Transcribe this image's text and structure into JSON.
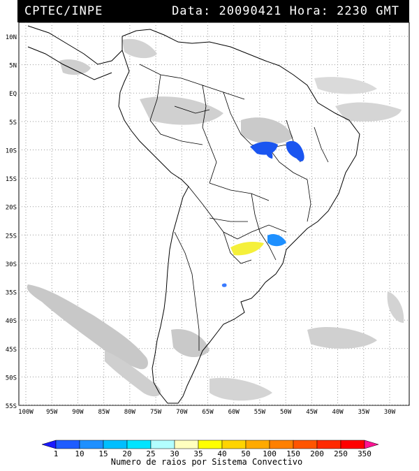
{
  "header": {
    "agency": "CPTEC/INPE",
    "data_label": "Data:",
    "date": "20090421",
    "hora_label": "Hora:",
    "time": "2230",
    "tz": "GMT"
  },
  "map": {
    "lat_labels": [
      "10N",
      "5N",
      "EQ",
      "5S",
      "10S",
      "15S",
      "20S",
      "25S",
      "30S",
      "35S",
      "40S",
      "45S",
      "50S",
      "55S"
    ],
    "lon_labels": [
      "100W",
      "95W",
      "90W",
      "85W",
      "80W",
      "75W",
      "70W",
      "65W",
      "60W",
      "55W",
      "50W",
      "45W",
      "40W",
      "35W",
      "30W"
    ],
    "colors": {
      "land_border": "#000000",
      "grid": "#9a9a9a",
      "cloud": "#bdbdbd",
      "cloud_light": "#d9d9d9"
    }
  },
  "colorbar": {
    "ticks": [
      "1",
      "10",
      "15",
      "20",
      "25",
      "30",
      "35",
      "40",
      "50",
      "100",
      "150",
      "200",
      "250",
      "350"
    ],
    "colors": [
      "#1a1aff",
      "#1e5cff",
      "#1e90ff",
      "#00bfff",
      "#00e5ff",
      "#b3ffff",
      "#ffffbf",
      "#ffff00",
      "#ffd400",
      "#ffaa00",
      "#ff8000",
      "#ff5500",
      "#ff2a00",
      "#ff0000",
      "#ff1493"
    ],
    "caption": "Numero de raios por Sistema Convectivo"
  }
}
